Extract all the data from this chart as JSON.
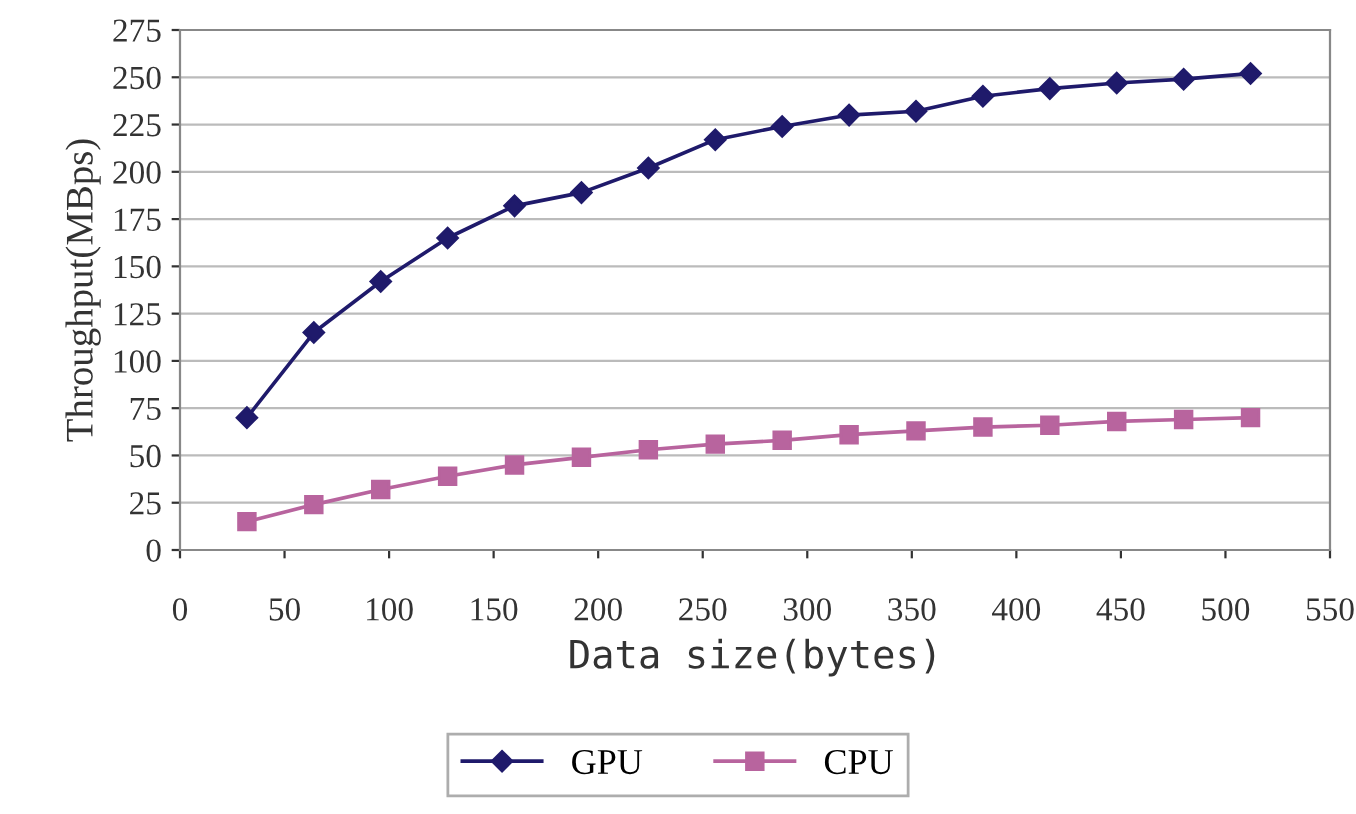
{
  "chart_data": {
    "type": "line",
    "xlabel": "Data size(bytes)",
    "ylabel": "Throughput(MBps)",
    "x": [
      32,
      64,
      96,
      128,
      160,
      192,
      224,
      256,
      288,
      320,
      352,
      384,
      416,
      448,
      480,
      512
    ],
    "series": [
      {
        "name": "GPU",
        "color": "#1f1a6b",
        "marker": "diamond",
        "values": [
          70,
          115,
          142,
          165,
          182,
          189,
          202,
          217,
          224,
          230,
          232,
          240,
          244,
          247,
          249,
          252
        ]
      },
      {
        "name": "CPU",
        "color": "#b8649e",
        "marker": "square",
        "values": [
          15,
          24,
          32,
          39,
          45,
          49,
          53,
          56,
          58,
          61,
          63,
          65,
          66,
          68,
          69,
          70
        ]
      }
    ],
    "xlim": [
      0,
      550
    ],
    "xticks": [
      0,
      50,
      100,
      150,
      200,
      250,
      300,
      350,
      400,
      450,
      500,
      550
    ],
    "ylim": [
      0,
      275
    ],
    "yticks": [
      0,
      25,
      50,
      75,
      100,
      125,
      150,
      175,
      200,
      225,
      250,
      275
    ],
    "grid": "y",
    "legend": "bottom",
    "line_style": "solid"
  }
}
